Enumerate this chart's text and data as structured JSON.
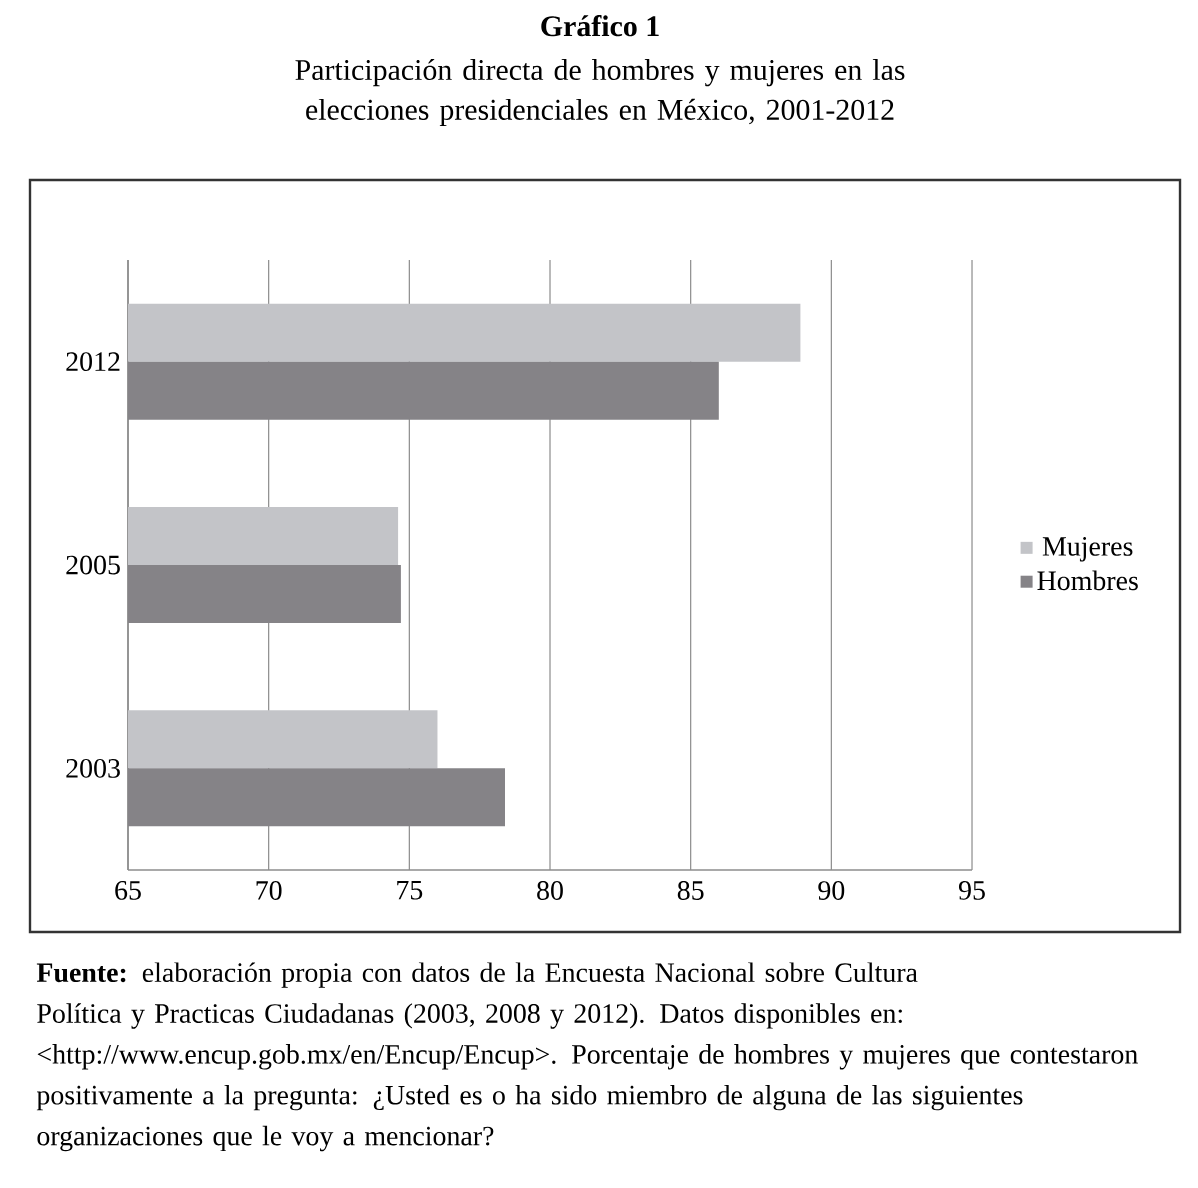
{
  "chart_data": {
    "type": "bar",
    "orientation": "horizontal",
    "title": "Gráfico 1",
    "subtitle": "Participación directa de hombres y mujeres en las elecciones presidenciales en México, 2001-2012",
    "categories": [
      "2012",
      "2005",
      "2003"
    ],
    "series": [
      {
        "name": "Mujeres",
        "color": "#c3c4c8",
        "values": [
          88.9,
          74.6,
          76.0
        ]
      },
      {
        "name": "Hombres",
        "color": "#858387",
        "values": [
          86.0,
          74.7,
          78.4
        ]
      }
    ],
    "xlim": [
      65,
      95
    ],
    "xticks": [
      65,
      70,
      75,
      80,
      85,
      90,
      95
    ],
    "grid": "x",
    "legend": "right",
    "annotations": [
      "**Fuente:** elaboración propia con datos de la Encuesta Nacional sobre Cultura Política y Practicas Ciudadanas (2003, 2008 y 2012). Datos disponibles en: <http://www.encup.gob.mx/en/Encup/Encup>. Porcentaje de hombres y mujeres que contestaron positivamente a la pregunta: ¿Usted es o ha sido miembro de alguna de las siguientes organizaciones que le voy a mencionar?"
    ]
  }
}
